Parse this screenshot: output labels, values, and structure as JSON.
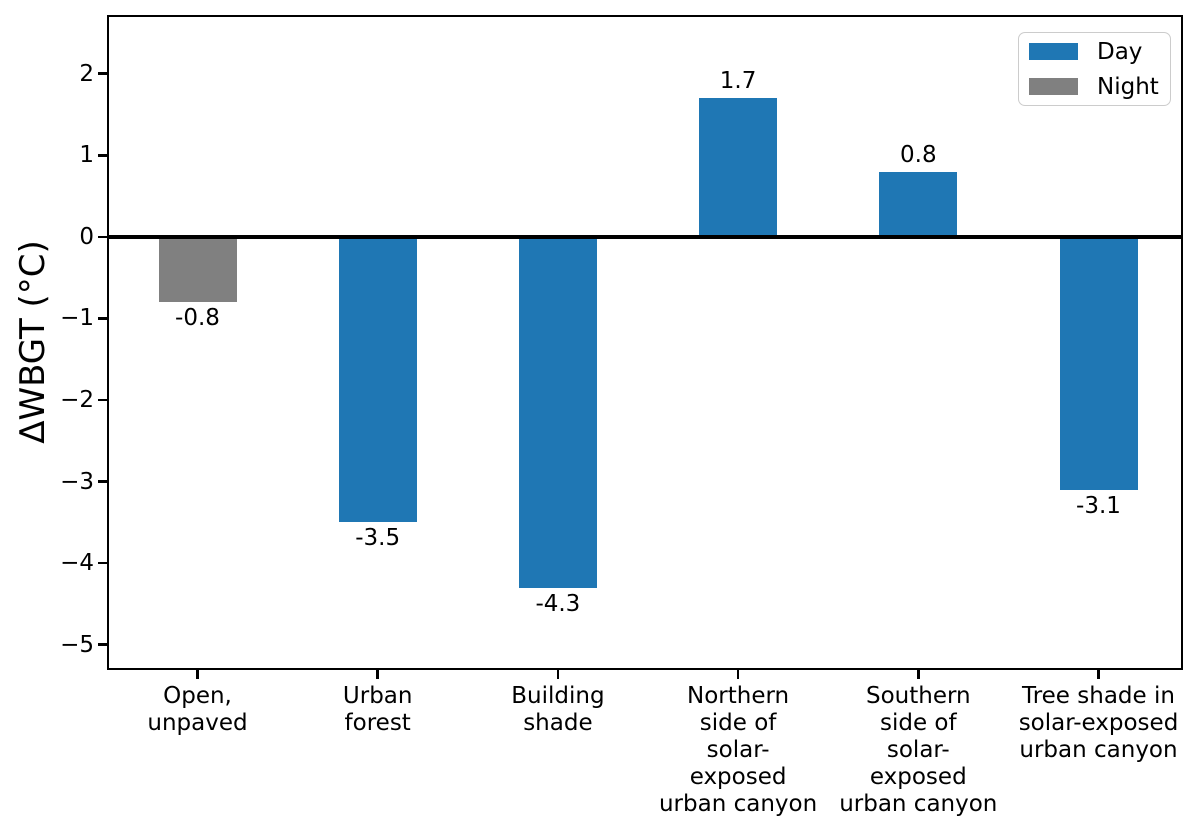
{
  "chart_data": {
    "type": "bar",
    "ylabel": "ΔWBGT (°C)",
    "ylim": [
      -5.31,
      2.72
    ],
    "yticks": [
      {
        "value": 2,
        "label": "2"
      },
      {
        "value": 1,
        "label": "1"
      },
      {
        "value": 0,
        "label": "0"
      },
      {
        "value": -1,
        "label": "−1"
      },
      {
        "value": -2,
        "label": "−2"
      },
      {
        "value": -3,
        "label": "−3"
      },
      {
        "value": -4,
        "label": "−4"
      },
      {
        "value": -5,
        "label": "−5"
      }
    ],
    "grid": false,
    "zero_line": true,
    "categories": [
      {
        "label": "Open, unpaved",
        "lines": [
          "Open,",
          "unpaved"
        ]
      },
      {
        "label": "Urban forest",
        "lines": [
          "Urban",
          "forest"
        ]
      },
      {
        "label": "Building shade",
        "lines": [
          "Building",
          "shade"
        ]
      },
      {
        "label": "Northern side of solar-exposed urban canyon",
        "lines": [
          "Northern",
          "side of",
          "solar-",
          "exposed",
          "urban canyon"
        ]
      },
      {
        "label": "Southern side of solar-exposed urban canyon",
        "lines": [
          "Southern",
          "side of",
          "solar-",
          "exposed",
          "urban canyon"
        ]
      },
      {
        "label": "Tree shade in solar-exposed urban canyon",
        "lines": [
          "Tree shade in",
          "solar-exposed",
          "urban canyon"
        ]
      }
    ],
    "series_colors": {
      "Day": "#1f77b4",
      "Night": "#808080"
    },
    "bars": [
      {
        "category": "Open, unpaved",
        "series": "Night",
        "value": -0.8,
        "label": "-0.8"
      },
      {
        "category": "Urban forest",
        "series": "Day",
        "value": -3.5,
        "label": "-3.5"
      },
      {
        "category": "Building shade",
        "series": "Day",
        "value": -4.3,
        "label": "-4.3"
      },
      {
        "category": "Northern side of solar-exposed urban canyon",
        "series": "Day",
        "value": 1.7,
        "label": "1.7"
      },
      {
        "category": "Southern side of solar-exposed urban canyon",
        "series": "Day",
        "value": 0.8,
        "label": "0.8"
      },
      {
        "category": "Tree shade in solar-exposed urban canyon",
        "series": "Day",
        "value": -3.1,
        "label": "-3.1"
      }
    ],
    "legend": {
      "position": "upper right",
      "entries": [
        {
          "label": "Day",
          "color": "#1f77b4"
        },
        {
          "label": "Night",
          "color": "#808080"
        }
      ]
    },
    "axis_color": "#000000",
    "background": "#ffffff"
  }
}
